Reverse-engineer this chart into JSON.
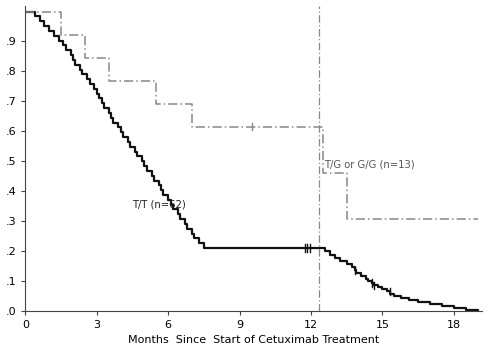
{
  "title": "",
  "xlabel": "Months  Since  Start of Cetuximab Treatment",
  "ylabel": "",
  "xlim": [
    0,
    19.2
  ],
  "ylim": [
    0,
    1.02
  ],
  "xticks": [
    0,
    3,
    6,
    9,
    12,
    15,
    18
  ],
  "yticks": [
    0.0,
    0.1,
    0.2,
    0.3,
    0.4,
    0.5,
    0.6,
    0.7,
    0.8,
    0.9
  ],
  "ytick_labels": [
    ".0",
    ".1",
    ".2",
    ".3",
    ".4",
    ".5",
    ".6",
    ".7",
    ".8",
    ".9"
  ],
  "tt_label": "T/T (n=62)",
  "tg_label": "T/G or G/G (n=13)",
  "tt_x": [
    0,
    0.4,
    0.6,
    0.8,
    1.0,
    1.2,
    1.4,
    1.6,
    1.7,
    1.9,
    2.0,
    2.1,
    2.3,
    2.4,
    2.6,
    2.7,
    2.9,
    3.0,
    3.1,
    3.2,
    3.3,
    3.5,
    3.6,
    3.7,
    3.9,
    4.0,
    4.1,
    4.3,
    4.4,
    4.6,
    4.7,
    4.9,
    5.0,
    5.1,
    5.3,
    5.4,
    5.6,
    5.7,
    5.8,
    6.0,
    6.1,
    6.2,
    6.4,
    6.5,
    6.7,
    6.8,
    7.0,
    7.1,
    7.3,
    7.5,
    7.6,
    7.8,
    7.9,
    8.1,
    8.2,
    8.4,
    8.6,
    8.7,
    8.9,
    9.0,
    9.2,
    9.4,
    9.6,
    9.8,
    10.0,
    10.2,
    10.4,
    10.6,
    10.8,
    11.0,
    11.2,
    11.3,
    11.5,
    11.6,
    11.8,
    11.85,
    11.9,
    12.0,
    12.1,
    12.25,
    12.4,
    12.6,
    12.8,
    13.0,
    13.2,
    13.5,
    13.7,
    13.85,
    13.9,
    14.1,
    14.3,
    14.4,
    14.55,
    14.6,
    14.8,
    15.0,
    15.2,
    15.3,
    15.5,
    15.8,
    16.1,
    16.5,
    17.0,
    17.5,
    18.0,
    18.5,
    19.0
  ],
  "tt_y": [
    1.0,
    0.984,
    0.968,
    0.952,
    0.935,
    0.919,
    0.903,
    0.887,
    0.871,
    0.855,
    0.839,
    0.823,
    0.806,
    0.79,
    0.774,
    0.758,
    0.742,
    0.726,
    0.71,
    0.694,
    0.677,
    0.661,
    0.645,
    0.629,
    0.613,
    0.597,
    0.581,
    0.565,
    0.548,
    0.532,
    0.516,
    0.5,
    0.484,
    0.468,
    0.452,
    0.435,
    0.419,
    0.403,
    0.387,
    0.371,
    0.355,
    0.339,
    0.323,
    0.306,
    0.29,
    0.274,
    0.258,
    0.242,
    0.226,
    0.21,
    0.21,
    0.21,
    0.21,
    0.21,
    0.21,
    0.21,
    0.21,
    0.21,
    0.21,
    0.21,
    0.21,
    0.21,
    0.21,
    0.21,
    0.21,
    0.21,
    0.21,
    0.21,
    0.21,
    0.21,
    0.21,
    0.21,
    0.21,
    0.21,
    0.21,
    0.21,
    0.21,
    0.21,
    0.21,
    0.21,
    0.21,
    0.21,
    0.21,
    0.21,
    0.21,
    0.21,
    0.21,
    0.21,
    0.21,
    0.21,
    0.21,
    0.21,
    0.21,
    0.21,
    0.21,
    0.21,
    0.21,
    0.21,
    0.21,
    0.21,
    0.21,
    0.21,
    0.21,
    0.21,
    0.21,
    0.21,
    0.0
  ],
  "tt_x2": [
    0,
    0.4,
    0.6,
    0.8,
    1.0,
    1.2,
    1.4,
    1.6,
    1.7,
    1.9,
    2.0,
    2.1,
    2.3,
    2.4,
    2.6,
    2.7,
    2.9,
    3.0,
    3.1,
    3.2,
    3.3,
    3.5,
    3.6,
    3.7,
    3.9,
    4.0,
    4.1,
    4.3,
    4.4,
    4.6,
    4.7,
    4.9,
    5.0,
    5.1,
    5.3,
    5.4,
    5.6,
    5.7,
    5.8,
    6.0,
    6.1,
    6.2,
    6.4,
    6.5,
    6.7,
    6.8,
    7.0,
    7.1,
    7.3,
    7.5,
    12.4,
    12.6,
    12.8,
    13.0,
    13.2,
    13.5,
    13.7,
    13.85,
    13.9,
    14.1,
    14.3,
    14.4,
    14.55,
    14.6,
    14.8,
    15.0,
    15.2,
    15.3,
    15.5,
    15.8,
    16.1,
    16.5,
    17.0,
    17.5,
    18.0,
    18.5,
    19.0
  ],
  "tt_y2": [
    1.0,
    0.984,
    0.968,
    0.952,
    0.935,
    0.919,
    0.903,
    0.887,
    0.871,
    0.855,
    0.839,
    0.823,
    0.806,
    0.79,
    0.774,
    0.758,
    0.742,
    0.726,
    0.71,
    0.694,
    0.677,
    0.661,
    0.645,
    0.629,
    0.613,
    0.597,
    0.581,
    0.565,
    0.548,
    0.532,
    0.516,
    0.5,
    0.484,
    0.468,
    0.452,
    0.435,
    0.419,
    0.403,
    0.387,
    0.371,
    0.355,
    0.339,
    0.323,
    0.306,
    0.29,
    0.274,
    0.258,
    0.242,
    0.226,
    0.21,
    0.21,
    0.2,
    0.185,
    0.175,
    0.165,
    0.155,
    0.145,
    0.135,
    0.125,
    0.115,
    0.107,
    0.1,
    0.093,
    0.086,
    0.079,
    0.072,
    0.065,
    0.058,
    0.05,
    0.043,
    0.036,
    0.029,
    0.022,
    0.015,
    0.008,
    0.004,
    0.0
  ],
  "tg_x": [
    0,
    1.5,
    2.5,
    3.5,
    5.5,
    7.0,
    12.0,
    12.5,
    13.5,
    19.0
  ],
  "tg_y": [
    1.0,
    0.923,
    0.846,
    0.769,
    0.692,
    0.615,
    0.615,
    0.462,
    0.308,
    0.308
  ],
  "vline_x": 12.35,
  "tt_censor_x": [
    11.75,
    11.85,
    11.95,
    13.85,
    14.55,
    14.65,
    15.3
  ],
  "tt_censor_y": [
    0.21,
    0.21,
    0.21,
    0.135,
    0.093,
    0.086,
    0.065
  ],
  "tg_censor_x": [
    9.5
  ],
  "tg_censor_y": [
    0.615
  ],
  "tt_color": "#111111",
  "tg_color": "#888888",
  "vline_color": "#888888"
}
